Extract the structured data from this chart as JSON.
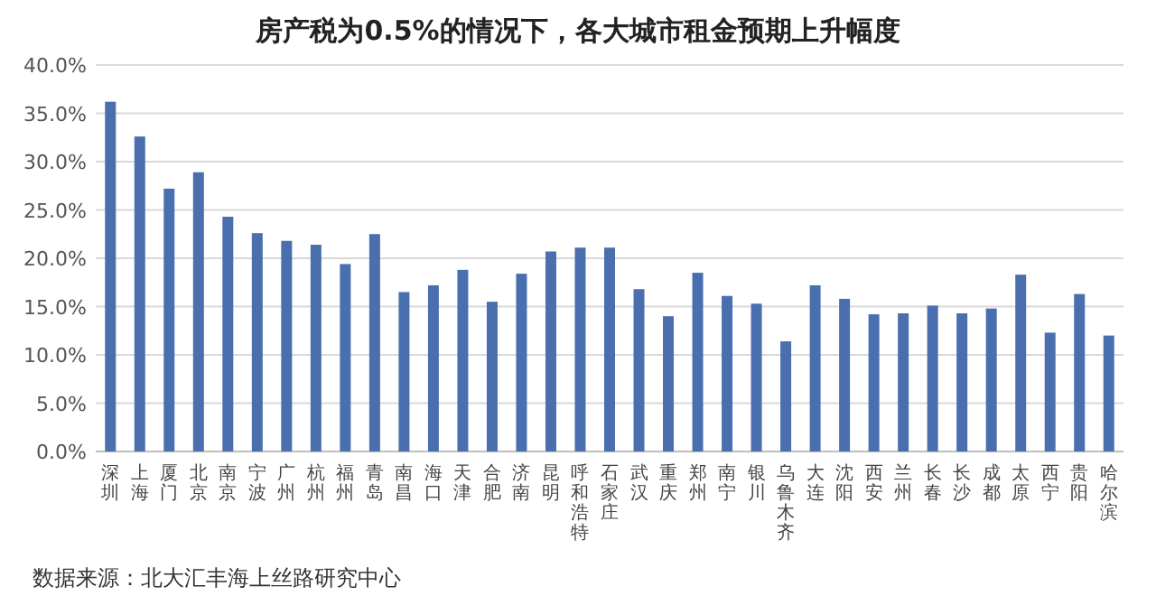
{
  "chart_data": {
    "type": "bar",
    "title": "房产税为0.5%的情况下，各大城市租金预期上升幅度",
    "categories": [
      "深圳",
      "上海",
      "厦门",
      "北京",
      "南京",
      "宁波",
      "广州",
      "杭州",
      "福州",
      "青岛",
      "南昌",
      "海口",
      "天津",
      "合肥",
      "济南",
      "昆明",
      "呼和浩特",
      "石家庄",
      "武汉",
      "重庆",
      "郑州",
      "南宁",
      "银川",
      "乌鲁木齐",
      "大连",
      "沈阳",
      "西安",
      "兰州",
      "长春",
      "长沙",
      "成都",
      "太原",
      "西宁",
      "贵阳",
      "哈尔滨"
    ],
    "values": [
      36.2,
      32.6,
      27.2,
      28.9,
      24.3,
      22.6,
      21.8,
      21.4,
      19.4,
      22.5,
      16.5,
      17.2,
      18.8,
      15.5,
      18.4,
      20.7,
      21.1,
      21.1,
      16.8,
      14.0,
      18.5,
      16.1,
      15.3,
      11.4,
      17.2,
      15.8,
      14.2,
      14.3,
      15.1,
      14.3,
      14.8,
      18.3,
      12.3,
      16.3,
      12.0
    ],
    "color": "#4a6fae",
    "ylim": [
      0,
      40
    ],
    "yticks": [
      {
        "value": 0,
        "label": "0.0%"
      },
      {
        "value": 5,
        "label": "5.0%"
      },
      {
        "value": 10,
        "label": "10.0%"
      },
      {
        "value": 15,
        "label": "15.0%"
      },
      {
        "value": 20,
        "label": "20.0%"
      },
      {
        "value": 25,
        "label": "25.0%"
      },
      {
        "value": 30,
        "label": "30.0%"
      },
      {
        "value": 35,
        "label": "35.0%"
      },
      {
        "value": 40,
        "label": "40.0%"
      }
    ],
    "grid": "y",
    "annotations": [
      "数据来源：北大汇丰海上丝路研究中心"
    ]
  }
}
